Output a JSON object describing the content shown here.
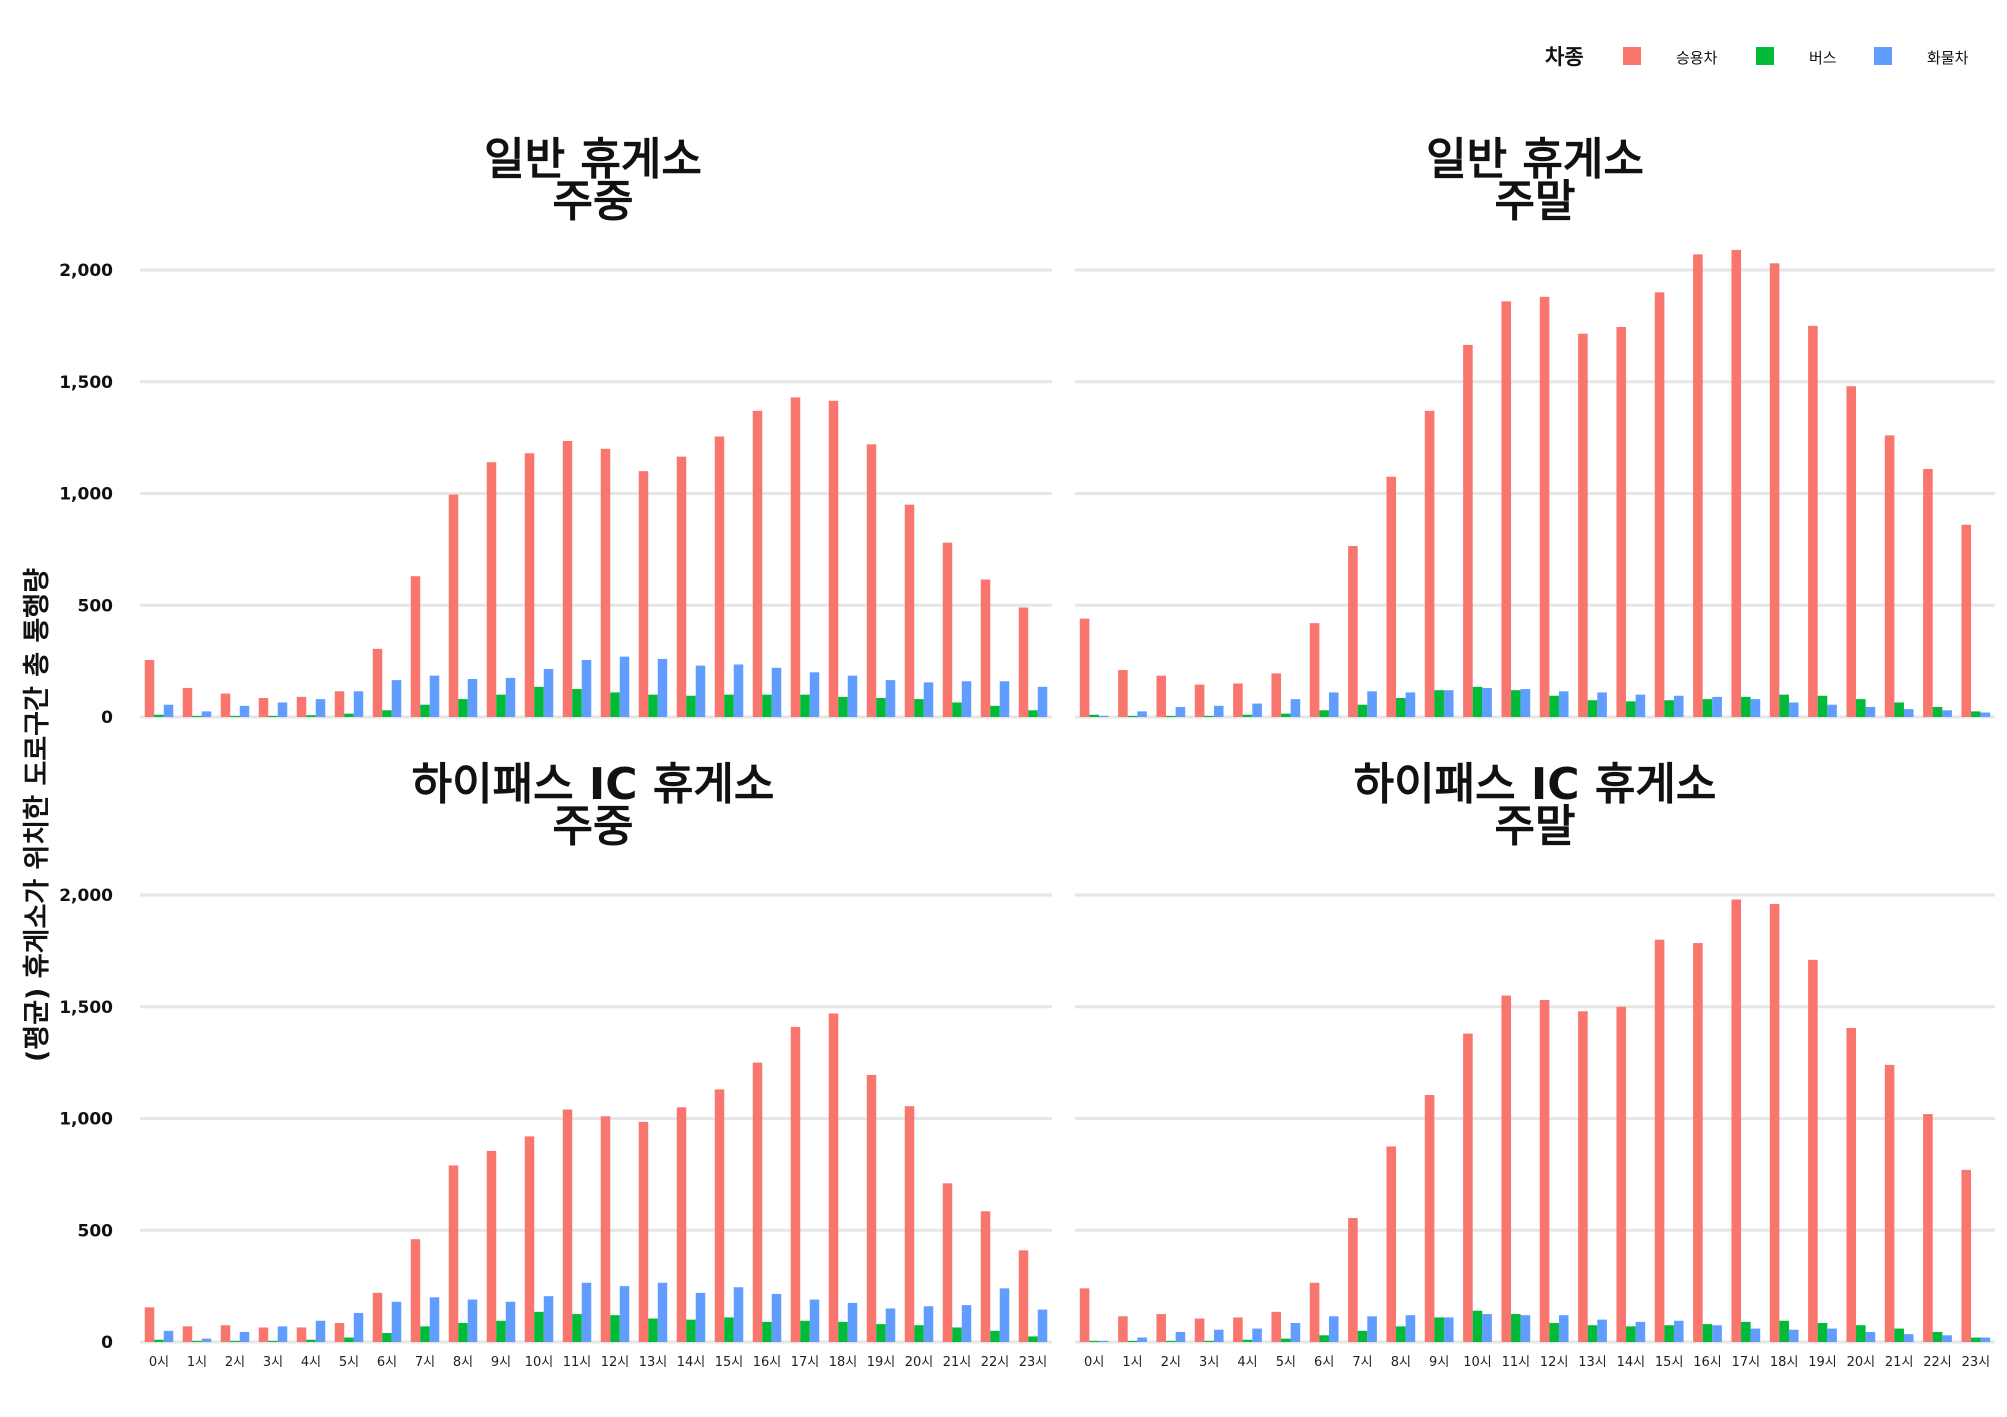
{
  "ylabel": "(평균) 휴게소가 위치한 도로구간 총 통행량",
  "legend": {
    "title": "차종",
    "items": [
      {
        "label": "승용차",
        "color": "#F8766D"
      },
      {
        "label": "버스",
        "color": "#00BA38"
      },
      {
        "label": "화물차",
        "color": "#619CFF"
      }
    ]
  },
  "chart_data": [
    {
      "type": "bar",
      "title": [
        "일반 휴게소",
        "주중"
      ],
      "categories": [
        "0시",
        "1시",
        "2시",
        "3시",
        "4시",
        "5시",
        "6시",
        "7시",
        "8시",
        "9시",
        "10시",
        "11시",
        "12시",
        "13시",
        "14시",
        "15시",
        "16시",
        "17시",
        "18시",
        "19시",
        "20시",
        "21시",
        "22시",
        "23시"
      ],
      "ylim": [
        0,
        2100
      ],
      "yticks": [
        0,
        500,
        1000,
        1500,
        2000
      ],
      "yticklabels": [
        "0",
        "500",
        "1,000",
        "1,500",
        "2,000"
      ],
      "series": [
        {
          "name": "승용차",
          "values": [
            255,
            130,
            105,
            85,
            90,
            115,
            305,
            630,
            995,
            1140,
            1180,
            1235,
            1200,
            1100,
            1165,
            1255,
            1370,
            1430,
            1415,
            1220,
            950,
            780,
            615,
            490
          ]
        },
        {
          "name": "버스",
          "values": [
            10,
            5,
            5,
            5,
            8,
            15,
            30,
            55,
            80,
            100,
            135,
            125,
            110,
            100,
            95,
            100,
            100,
            100,
            90,
            85,
            80,
            65,
            50,
            30
          ]
        },
        {
          "name": "화물차",
          "values": [
            55,
            25,
            50,
            65,
            80,
            115,
            165,
            185,
            170,
            175,
            215,
            255,
            270,
            260,
            230,
            235,
            220,
            200,
            185,
            165,
            155,
            160,
            160,
            135
          ]
        }
      ]
    },
    {
      "type": "bar",
      "title": [
        "일반 휴게소",
        "주말"
      ],
      "categories": [
        "0시",
        "1시",
        "2시",
        "3시",
        "4시",
        "5시",
        "6시",
        "7시",
        "8시",
        "9시",
        "10시",
        "11시",
        "12시",
        "13시",
        "14시",
        "15시",
        "16시",
        "17시",
        "18시",
        "19시",
        "20시",
        "21시",
        "22시",
        "23시"
      ],
      "ylim": [
        0,
        2100
      ],
      "yticks": [
        0,
        500,
        1000,
        1500,
        2000
      ],
      "yticklabels": [
        "0",
        "500",
        "1,000",
        "1,500",
        "2,000"
      ],
      "series": [
        {
          "name": "승용차",
          "values": [
            440,
            210,
            185,
            145,
            150,
            195,
            420,
            765,
            1075,
            1370,
            1665,
            1860,
            1880,
            1715,
            1745,
            1900,
            2070,
            2090,
            2030,
            1750,
            1480,
            1260,
            1110,
            860
          ]
        },
        {
          "name": "버스",
          "values": [
            10,
            5,
            5,
            5,
            10,
            15,
            30,
            55,
            85,
            120,
            135,
            120,
            95,
            75,
            70,
            75,
            80,
            90,
            100,
            95,
            80,
            65,
            45,
            25
          ]
        },
        {
          "name": "화물차",
          "values": [
            5,
            25,
            45,
            50,
            60,
            80,
            110,
            115,
            110,
            120,
            130,
            125,
            115,
            110,
            100,
            95,
            90,
            80,
            65,
            55,
            45,
            35,
            30,
            20
          ]
        }
      ]
    },
    {
      "type": "bar",
      "title": [
        "하이패스 IC 휴게소",
        "주중"
      ],
      "categories": [
        "0시",
        "1시",
        "2시",
        "3시",
        "4시",
        "5시",
        "6시",
        "7시",
        "8시",
        "9시",
        "10시",
        "11시",
        "12시",
        "13시",
        "14시",
        "15시",
        "16시",
        "17시",
        "18시",
        "19시",
        "20시",
        "21시",
        "22시",
        "23시"
      ],
      "ylim": [
        0,
        2100
      ],
      "yticks": [
        0,
        500,
        1000,
        1500,
        2000
      ],
      "yticklabels": [
        "0",
        "500",
        "1,000",
        "1,500",
        "2,000"
      ],
      "series": [
        {
          "name": "승용차",
          "values": [
            155,
            70,
            75,
            65,
            65,
            85,
            220,
            460,
            790,
            855,
            920,
            1040,
            1010,
            985,
            1050,
            1130,
            1250,
            1410,
            1470,
            1195,
            1055,
            710,
            585,
            410
          ]
        },
        {
          "name": "버스",
          "values": [
            10,
            5,
            5,
            5,
            10,
            20,
            40,
            70,
            85,
            95,
            135,
            125,
            120,
            105,
            100,
            110,
            90,
            95,
            90,
            80,
            75,
            65,
            50,
            25
          ]
        },
        {
          "name": "화물차",
          "values": [
            50,
            15,
            45,
            70,
            95,
            130,
            180,
            200,
            190,
            180,
            205,
            265,
            250,
            265,
            220,
            245,
            215,
            190,
            175,
            150,
            160,
            165,
            240,
            145
          ]
        }
      ]
    },
    {
      "type": "bar",
      "title": [
        "하이패스 IC 휴게소",
        "주말"
      ],
      "categories": [
        "0시",
        "1시",
        "2시",
        "3시",
        "4시",
        "5시",
        "6시",
        "7시",
        "8시",
        "9시",
        "10시",
        "11시",
        "12시",
        "13시",
        "14시",
        "15시",
        "16시",
        "17시",
        "18시",
        "19시",
        "20시",
        "21시",
        "22시",
        "23시"
      ],
      "ylim": [
        0,
        2100
      ],
      "yticks": [
        0,
        500,
        1000,
        1500,
        2000
      ],
      "yticklabels": [
        "0",
        "500",
        "1,000",
        "1,500",
        "2,000"
      ],
      "series": [
        {
          "name": "승용차",
          "values": [
            240,
            115,
            125,
            105,
            110,
            135,
            265,
            555,
            875,
            1105,
            1380,
            1550,
            1530,
            1480,
            1500,
            1800,
            1785,
            1980,
            1960,
            1710,
            1405,
            1240,
            1020,
            770
          ]
        },
        {
          "name": "버스",
          "values": [
            5,
            5,
            5,
            5,
            10,
            15,
            30,
            50,
            70,
            110,
            140,
            125,
            85,
            75,
            70,
            75,
            80,
            90,
            95,
            85,
            75,
            60,
            45,
            20
          ]
        },
        {
          "name": "화물차",
          "values": [
            5,
            20,
            45,
            55,
            60,
            85,
            115,
            115,
            120,
            110,
            125,
            120,
            120,
            100,
            90,
            95,
            75,
            60,
            55,
            60,
            45,
            35,
            30,
            20
          ]
        }
      ]
    }
  ]
}
